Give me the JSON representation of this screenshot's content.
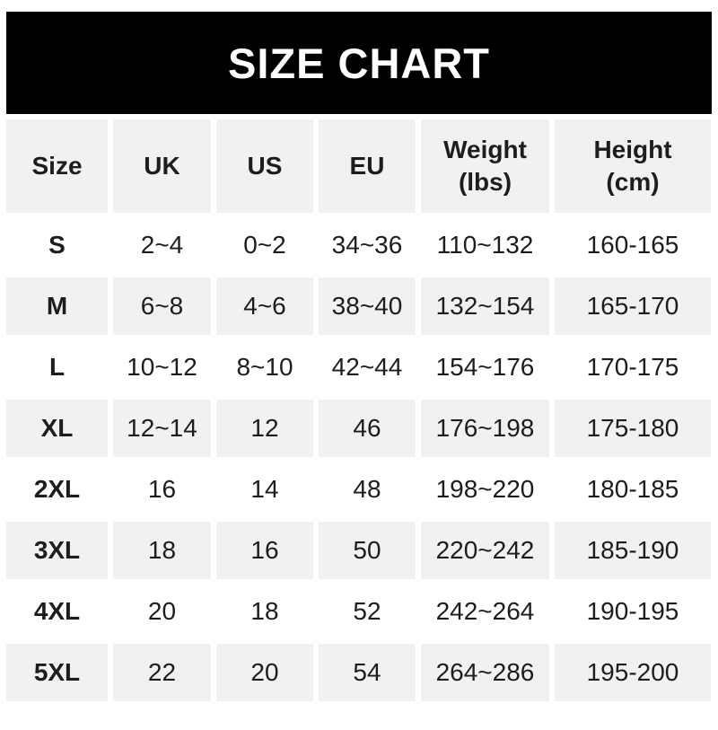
{
  "banner": {
    "title": "SIZE CHART"
  },
  "colors": {
    "page_bg": "#ffffff",
    "banner_bg": "#000000",
    "banner_fg": "#ffffff",
    "row_alt_bg": "#f1f1f1",
    "text": "#1d1d1d"
  },
  "display": {
    "col_weight": "Weight\n(lbs)",
    "col_height": "Height\n(cm)"
  },
  "chart_data": {
    "type": "table",
    "title": "SIZE CHART",
    "columns": [
      "Size",
      "UK",
      "US",
      "EU",
      "Weight (lbs)",
      "Height (cm)"
    ],
    "rows": [
      {
        "size": "S",
        "uk": "2~4",
        "us": "0~2",
        "eu": "34~36",
        "weight_lbs": "110~132",
        "height_cm": "160-165"
      },
      {
        "size": "M",
        "uk": "6~8",
        "us": "4~6",
        "eu": "38~40",
        "weight_lbs": "132~154",
        "height_cm": "165-170"
      },
      {
        "size": "L",
        "uk": "10~12",
        "us": "8~10",
        "eu": "42~44",
        "weight_lbs": "154~176",
        "height_cm": "170-175"
      },
      {
        "size": "XL",
        "uk": "12~14",
        "us": "12",
        "eu": "46",
        "weight_lbs": "176~198",
        "height_cm": "175-180"
      },
      {
        "size": "2XL",
        "uk": "16",
        "us": "14",
        "eu": "48",
        "weight_lbs": "198~220",
        "height_cm": "180-185"
      },
      {
        "size": "3XL",
        "uk": "18",
        "us": "16",
        "eu": "50",
        "weight_lbs": "220~242",
        "height_cm": "185-190"
      },
      {
        "size": "4XL",
        "uk": "20",
        "us": "18",
        "eu": "52",
        "weight_lbs": "242~264",
        "height_cm": "190-195"
      },
      {
        "size": "5XL",
        "uk": "22",
        "us": "20",
        "eu": "54",
        "weight_lbs": "264~286",
        "height_cm": "195-200"
      }
    ]
  }
}
